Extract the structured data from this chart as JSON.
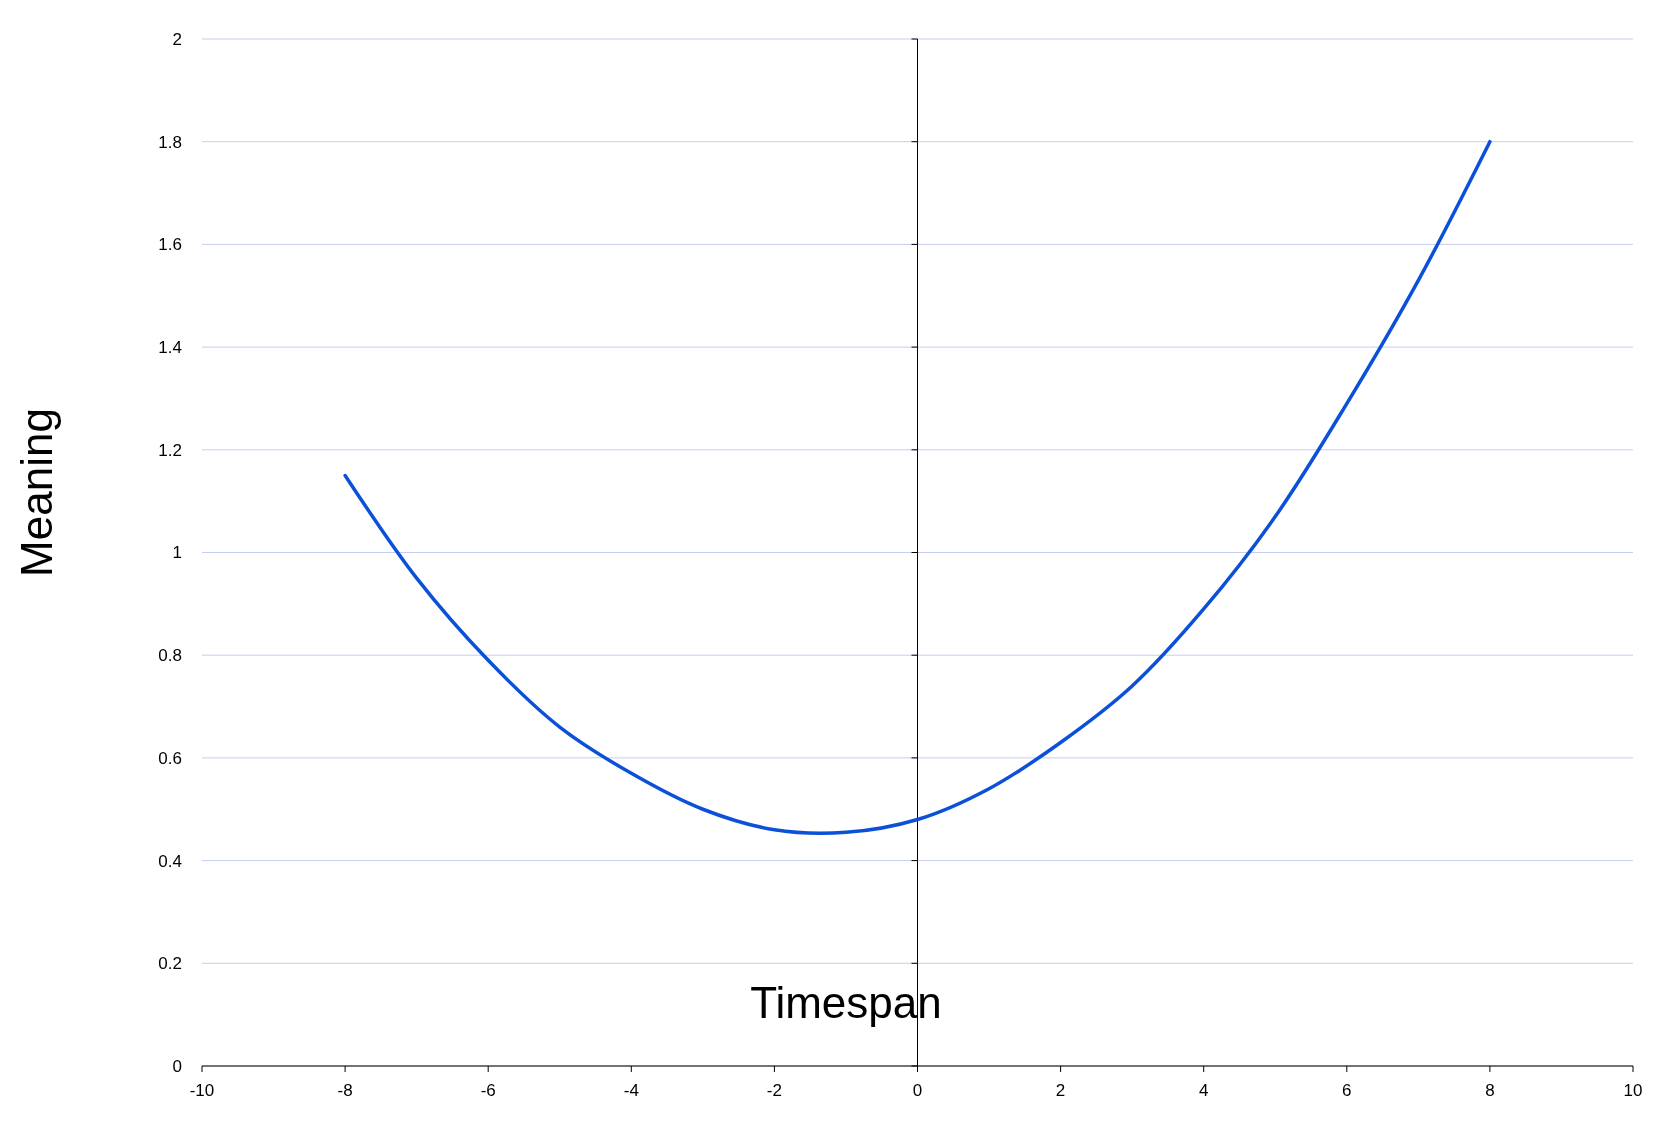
{
  "chart_data": {
    "type": "line",
    "xlabel": "Timespan",
    "ylabel": "Meaning",
    "x": [
      -8,
      -7,
      -6,
      -5,
      -4,
      -3,
      -2,
      -1,
      0,
      1,
      2,
      3,
      4,
      5,
      6,
      7,
      8
    ],
    "series": [
      {
        "color": "#0a50d8",
        "values": [
          1.15,
          0.95,
          0.79,
          0.66,
          0.57,
          0.5,
          0.46,
          0.455,
          0.48,
          0.54,
          0.63,
          0.74,
          0.89,
          1.07,
          1.29,
          1.53,
          1.8
        ]
      }
    ],
    "xlim": [
      -10,
      10
    ],
    "xticks": [
      -10,
      -8,
      -6,
      -4,
      -2,
      0,
      2,
      4,
      6,
      8,
      10
    ],
    "ylim": [
      0,
      2
    ],
    "yticks": [
      0,
      0.2,
      0.4,
      0.6,
      0.8,
      1,
      1.2,
      1.4,
      1.6,
      1.8,
      2
    ],
    "grid": "y",
    "marker": "none",
    "line_style": "solid"
  }
}
